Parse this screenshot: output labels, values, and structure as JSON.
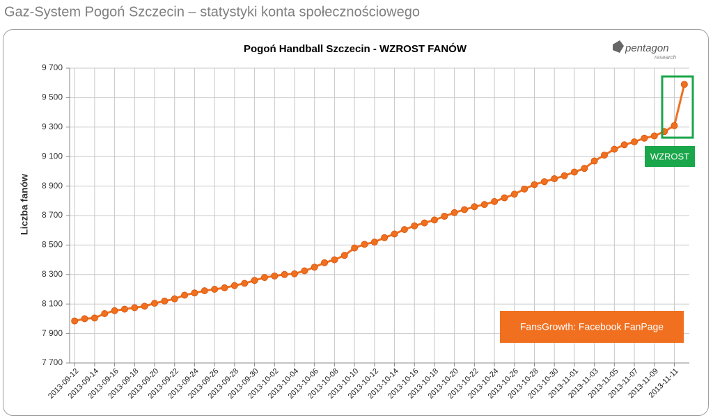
{
  "page_title": "Gaz-System Pogoń Szczecin – statystyki konta społecznościowego",
  "logo": {
    "name": "pentagon",
    "tagline": "research"
  },
  "chart_data": {
    "type": "line",
    "title": "Pogoń Handball Szczecin - WZROST FANÓW",
    "y_label": "Liczba fanów",
    "annotations": [
      "WZROST",
      "FansGrowth: Facebook FanPage"
    ],
    "categories": [
      "2013-09-12",
      null,
      "2013-09-14",
      null,
      "2013-09-16",
      null,
      "2013-09-18",
      null,
      "2013-09-20",
      null,
      "2013-09-22",
      null,
      "2013-09-24",
      null,
      "2013-09-26",
      null,
      "2013-09-28",
      null,
      "2013-09-30",
      null,
      "2013-10-02",
      null,
      "2013-10-04",
      null,
      "2013-10-06",
      null,
      "2013-10-08",
      null,
      "2013-10-10",
      null,
      "2013-10-12",
      null,
      "2013-10-14",
      null,
      "2013-10-16",
      null,
      "2013-10-18",
      null,
      "2013-10-20",
      null,
      "2013-10-22",
      null,
      "2013-10-24",
      null,
      "2013-10-26",
      null,
      "2013-10-28",
      null,
      "2013-10-30",
      null,
      "2013-11-01",
      null,
      "2013-11-03",
      null,
      "2013-11-05",
      null,
      "2013-11-07",
      null,
      "2013-11-09",
      null,
      "2013-11-11",
      null
    ],
    "series": [
      {
        "name": "Liczba fanów",
        "color": "#f07020",
        "values": [
          7985,
          8000,
          8005,
          8035,
          8055,
          8065,
          8075,
          8085,
          8105,
          8120,
          8135,
          8160,
          8175,
          8190,
          8200,
          8210,
          8225,
          8240,
          8260,
          8280,
          8290,
          8300,
          8305,
          8325,
          8350,
          8380,
          8400,
          8430,
          8480,
          8505,
          8520,
          8550,
          8575,
          8605,
          8630,
          8650,
          8670,
          8695,
          8720,
          8740,
          8760,
          8775,
          8795,
          8820,
          8845,
          8880,
          8910,
          8930,
          8950,
          8970,
          8995,
          9020,
          9070,
          9110,
          9150,
          9180,
          9200,
          9225,
          9240,
          9270,
          9310,
          9590
        ]
      }
    ],
    "ylim": [
      7700,
      9700
    ],
    "yticks": [
      {
        "value": 7700,
        "label": "7 700"
      },
      {
        "value": 7900,
        "label": "7 900"
      },
      {
        "value": 8100,
        "label": "8 100"
      },
      {
        "value": 8300,
        "label": "8 300"
      },
      {
        "value": 8500,
        "label": "8 500"
      },
      {
        "value": 8700,
        "label": "8 700"
      },
      {
        "value": 8900,
        "label": "8 900"
      },
      {
        "value": 9100,
        "label": "9 100"
      },
      {
        "value": 9300,
        "label": "9 300"
      },
      {
        "value": 9500,
        "label": "9 500"
      },
      {
        "value": 9700,
        "label": "9 700"
      }
    ],
    "grid": true
  }
}
